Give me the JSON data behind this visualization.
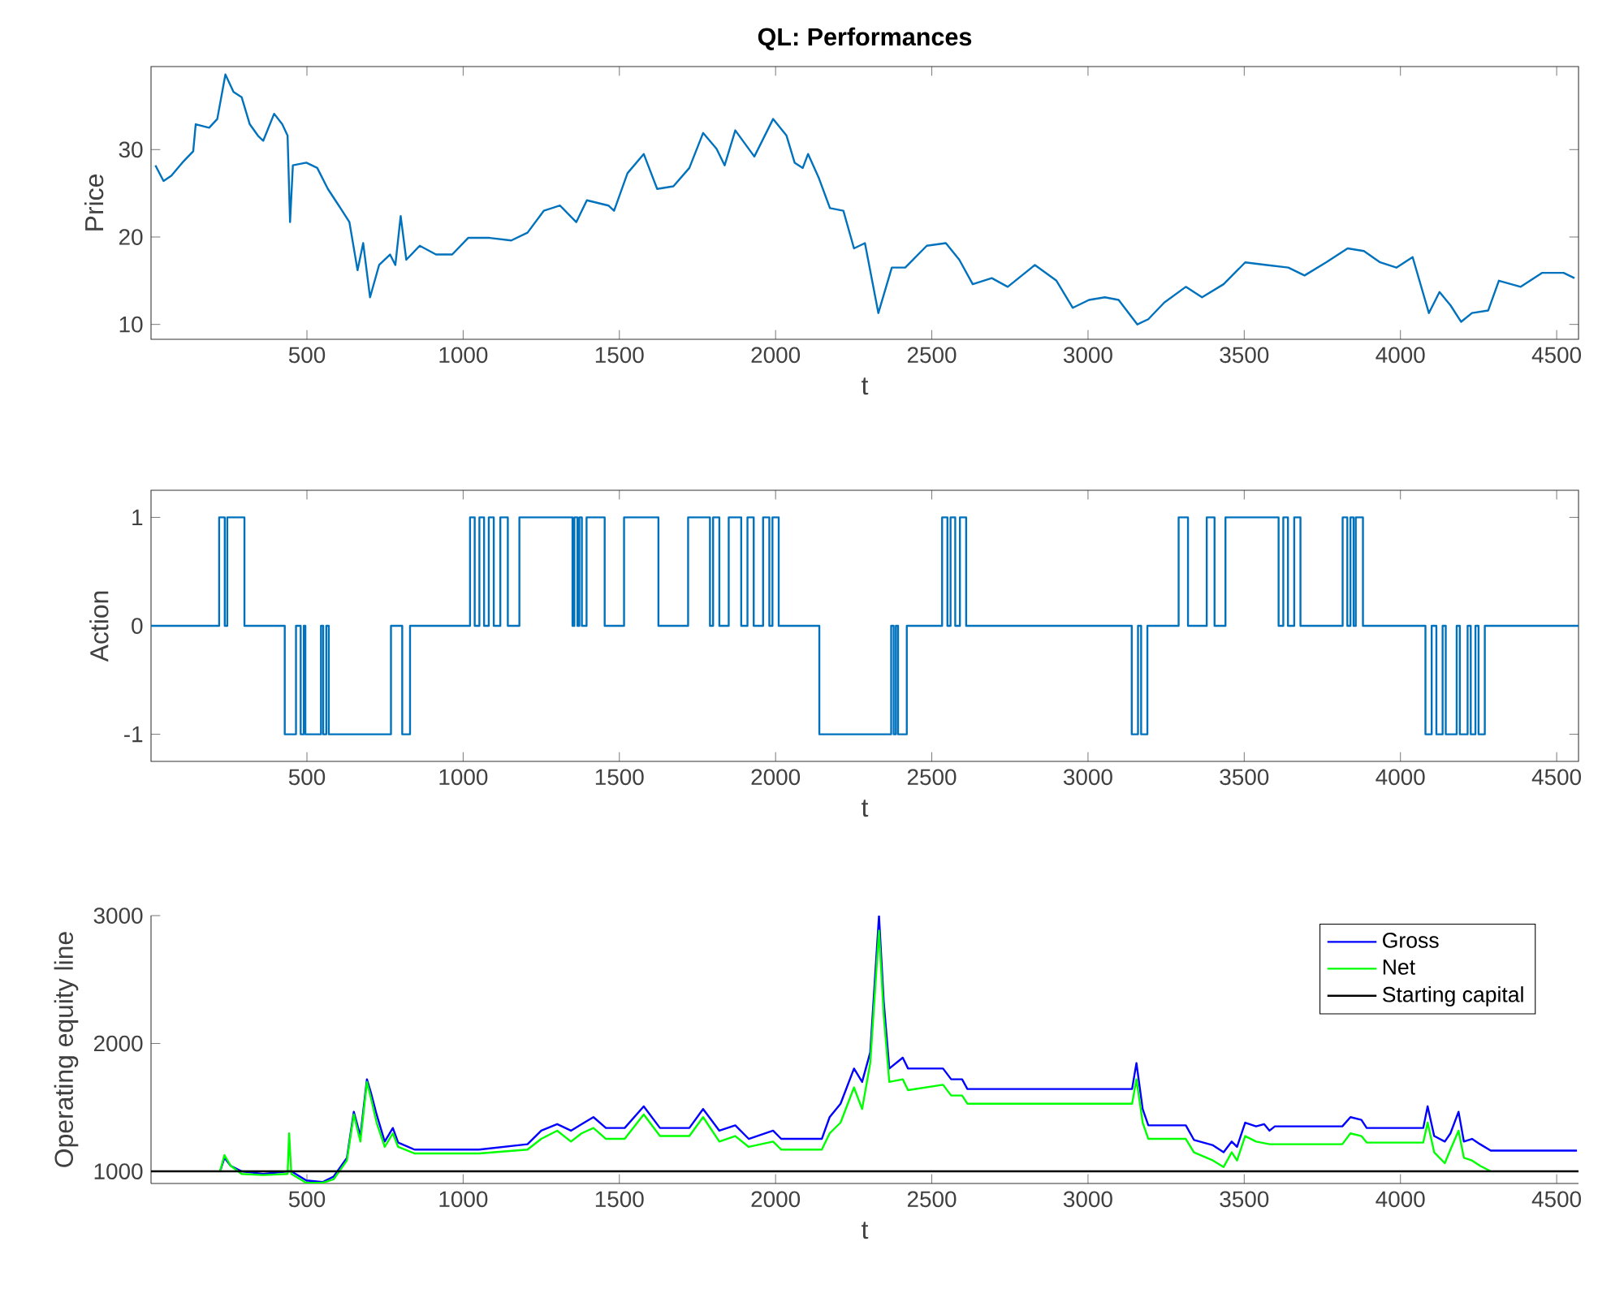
{
  "chart_data": [
    {
      "type": "line",
      "title": "QL: Performances",
      "xlabel": "t",
      "ylabel": "Price",
      "color": "#0072bd",
      "marker": "none",
      "xlim": [
        1,
        4570
      ],
      "ylim": [
        8.3,
        39.5
      ],
      "xticks": [
        500,
        1000,
        1500,
        2000,
        2500,
        3000,
        3500,
        4000,
        4500
      ],
      "yticks": [
        10,
        20,
        30
      ],
      "x": [
        15,
        41,
        66,
        101,
        136,
        144,
        187,
        213,
        239,
        265,
        291,
        317,
        343,
        360,
        395,
        421,
        438,
        446,
        455,
        498,
        533,
        567,
        602,
        636,
        662,
        680,
        702,
        731,
        766,
        783,
        800,
        818,
        861,
        913,
        965,
        1016,
        1085,
        1154,
        1206,
        1258,
        1310,
        1362,
        1396,
        1465,
        1483,
        1526,
        1578,
        1621,
        1673,
        1724,
        1768,
        1811,
        1837,
        1871,
        1932,
        1992,
        2035,
        2061,
        2087,
        2104,
        2139,
        2174,
        2217,
        2251,
        2286,
        2329,
        2372,
        2415,
        2484,
        2545,
        2588,
        2631,
        2692,
        2743,
        2830,
        2899,
        2951,
        3003,
        3054,
        3098,
        3158,
        3193,
        3244,
        3313,
        3365,
        3434,
        3503,
        3572,
        3641,
        3693,
        3762,
        3831,
        3883,
        3935,
        3987,
        4039,
        4091,
        4125,
        4160,
        4194,
        4229,
        4281,
        4315,
        4385,
        4453,
        4522,
        4557
      ],
      "values": [
        28.2,
        26.4,
        27.0,
        28.5,
        29.8,
        32.9,
        32.5,
        33.5,
        38.6,
        36.6,
        36.0,
        32.9,
        31.6,
        31.0,
        34.1,
        32.9,
        31.6,
        21.7,
        28.2,
        28.5,
        27.9,
        25.5,
        23.6,
        21.7,
        16.2,
        19.3,
        13.1,
        16.8,
        18.0,
        16.8,
        22.4,
        17.4,
        19.0,
        18.0,
        18.0,
        19.9,
        19.9,
        19.6,
        20.5,
        23.0,
        23.6,
        21.7,
        24.2,
        23.6,
        23.0,
        27.3,
        29.5,
        25.5,
        25.8,
        27.9,
        31.9,
        30.1,
        28.2,
        32.2,
        29.2,
        33.5,
        31.6,
        28.5,
        27.9,
        29.5,
        26.7,
        23.3,
        23.0,
        18.7,
        19.3,
        11.3,
        16.5,
        16.5,
        19.0,
        19.3,
        17.4,
        14.6,
        15.3,
        14.3,
        16.8,
        15.0,
        11.9,
        12.8,
        13.1,
        12.8,
        10.0,
        10.6,
        12.5,
        14.3,
        13.1,
        14.6,
        17.1,
        16.8,
        16.5,
        15.6,
        17.1,
        18.7,
        18.4,
        17.1,
        16.5,
        17.7,
        11.3,
        13.7,
        12.2,
        10.3,
        11.3,
        11.6,
        15.0,
        14.3,
        15.9,
        15.9,
        15.3
      ]
    },
    {
      "type": "step",
      "xlabel": "t",
      "ylabel": "Action",
      "color": "#0072bd",
      "marker": "none",
      "xlim": [
        1,
        4570
      ],
      "ylim": [
        -1.25,
        1.25
      ],
      "xticks": [
        500,
        1000,
        1500,
        2000,
        2500,
        3000,
        3500,
        4000,
        4500
      ],
      "yticks": [
        -1,
        0,
        1
      ],
      "x": [
        1,
        219,
        237,
        245,
        300,
        429,
        465,
        480,
        490,
        495,
        545,
        552,
        562,
        570,
        769,
        805,
        830,
        1022,
        1037,
        1052,
        1067,
        1082,
        1098,
        1119,
        1143,
        1180,
        1350,
        1356,
        1366,
        1372,
        1380,
        1395,
        1453,
        1515,
        1625,
        1720,
        1790,
        1800,
        1820,
        1850,
        1890,
        1910,
        1930,
        1960,
        1980,
        1990,
        2010,
        2140,
        2370,
        2378,
        2385,
        2392,
        2420,
        2533,
        2550,
        2560,
        2575,
        2590,
        2610,
        3140,
        3160,
        3170,
        3190,
        3290,
        3320,
        3380,
        3405,
        3440,
        3610,
        3625,
        3640,
        3660,
        3680,
        3815,
        3830,
        3840,
        3850,
        3857,
        3880,
        4080,
        4100,
        4115,
        4135,
        4145,
        4180,
        4190,
        4215,
        4225,
        4240,
        4250,
        4270,
        4570
      ],
      "values": [
        0,
        1,
        0,
        1,
        0,
        -1,
        0,
        -1,
        0,
        -1,
        0,
        -1,
        0,
        -1,
        0,
        -1,
        0,
        1,
        0,
        1,
        0,
        1,
        0,
        1,
        0,
        1,
        0,
        1,
        0,
        1,
        0,
        1,
        0,
        1,
        0,
        1,
        0,
        1,
        0,
        1,
        0,
        1,
        0,
        1,
        0,
        1,
        0,
        -1,
        0,
        -1,
        0,
        -1,
        0,
        1,
        0,
        1,
        0,
        1,
        0,
        -1,
        0,
        -1,
        0,
        1,
        0,
        1,
        0,
        1,
        0,
        1,
        0,
        1,
        0,
        1,
        0,
        1,
        0,
        1,
        0,
        -1,
        0,
        -1,
        0,
        -1,
        0,
        -1,
        0,
        -1,
        0,
        -1,
        0,
        0
      ]
    },
    {
      "type": "line",
      "xlabel": "t",
      "ylabel": "Operating equity line",
      "marker": "none",
      "legend": "top right",
      "xlim": [
        1,
        4570
      ],
      "ylim": [
        905,
        3000
      ],
      "xticks": [
        500,
        1000,
        1500,
        2000,
        2500,
        3000,
        3500,
        4000,
        4500
      ],
      "yticks": [
        1000,
        2000,
        3000
      ],
      "series": [
        {
          "name": "Gross",
          "color": "#0000ff",
          "x": [
            222,
            236,
            256,
            291,
            360,
            438,
            443,
            450,
            498,
            550,
            585,
            628,
            650,
            671,
            692,
            705,
            723,
            749,
            775,
            792,
            844,
            1051,
            1206,
            1250,
            1301,
            1345,
            1379,
            1417,
            1457,
            1517,
            1578,
            1630,
            1724,
            1768,
            1820,
            1871,
            1914,
            1992,
            2018,
            2148,
            2173,
            2208,
            2251,
            2277,
            2303,
            2331,
            2346,
            2364,
            2407,
            2424,
            2536,
            2562,
            2597,
            2614,
            3141,
            3155,
            3175,
            3193,
            3313,
            3339,
            3400,
            3434,
            3460,
            3477,
            3503,
            3538,
            3564,
            3581,
            3598,
            3814,
            3840,
            3875,
            3892,
            4073,
            4087,
            4108,
            4142,
            4160,
            4186,
            4203,
            4229,
            4255,
            4289,
            4565
          ],
          "values": [
            1000,
            1106,
            1043,
            1000,
            980,
            1000,
            null,
            1000,
            929,
            916,
            958,
            1106,
            1466,
            1276,
            1720,
            1614,
            1445,
            1233,
            1339,
            1225,
            1170,
            1170,
            1212,
            1318,
            1369,
            1318,
            1369,
            1424,
            1339,
            1339,
            1508,
            1339,
            1339,
            1487,
            1318,
            1360,
            1254,
            1318,
            1254,
            1254,
            1424,
            1529,
            1804,
            1699,
            1931,
            3000,
            2333,
            1804,
            1889,
            1804,
            1804,
            1720,
            1720,
            1644,
            1644,
            1847,
            1487,
            1360,
            1360,
            1246,
            1204,
            1149,
            1233,
            1191,
            1381,
            1352,
            1369,
            1318,
            1352,
            1352,
            1424,
            1403,
            1339,
            1339,
            1508,
            1276,
            1233,
            1297,
            1466,
            1233,
            1254,
            1212,
            1162,
            1162
          ]
        },
        {
          "name": "Net",
          "color": "#00ff00",
          "x": [
            222,
            236,
            256,
            291,
            360,
            438,
            443,
            450,
            498,
            550,
            585,
            628,
            650,
            671,
            692,
            705,
            723,
            749,
            775,
            792,
            844,
            1051,
            1206,
            1250,
            1301,
            1345,
            1379,
            1417,
            1457,
            1517,
            1578,
            1630,
            1724,
            1768,
            1820,
            1871,
            1914,
            1992,
            2018,
            2148,
            2173,
            2208,
            2251,
            2277,
            2303,
            2331,
            2346,
            2364,
            2407,
            2424,
            2536,
            2562,
            2597,
            2614,
            3141,
            3155,
            3175,
            3193,
            3313,
            3339,
            3400,
            3434,
            3460,
            3477,
            3503,
            3538,
            3581,
            3814,
            3840,
            3875,
            3892,
            4073,
            4087,
            4108,
            4142,
            4160,
            4186,
            4203,
            4229,
            4255,
            4289
          ],
          "values": [
            1000,
            1127,
            1043,
            980,
            971,
            980,
            1297,
            980,
            910,
            910,
            937,
            1085,
            1445,
            1233,
            1699,
            1572,
            1381,
            1191,
            1297,
            1191,
            1140,
            1140,
            1170,
            1254,
            1318,
            1233,
            1297,
            1339,
            1254,
            1254,
            1445,
            1276,
            1276,
            1424,
            1233,
            1276,
            1191,
            1233,
            1170,
            1170,
            1297,
            1381,
            1656,
            1487,
            1847,
            2883,
            2227,
            1699,
            1720,
            1635,
            1677,
            1593,
            1593,
            1529,
            1529,
            1720,
            1381,
            1254,
            1254,
            1149,
            1085,
            1034,
            1149,
            1085,
            1276,
            1233,
            1212,
            1212,
            1297,
            1276,
            1225,
            1225,
            1381,
            1149,
            1064,
            1170,
            1318,
            1106,
            1085,
            1043,
            1000
          ]
        },
        {
          "name": "Starting capital",
          "color": "#000000",
          "x": [
            1,
            4570
          ],
          "values": [
            1000,
            1000
          ]
        }
      ]
    }
  ]
}
